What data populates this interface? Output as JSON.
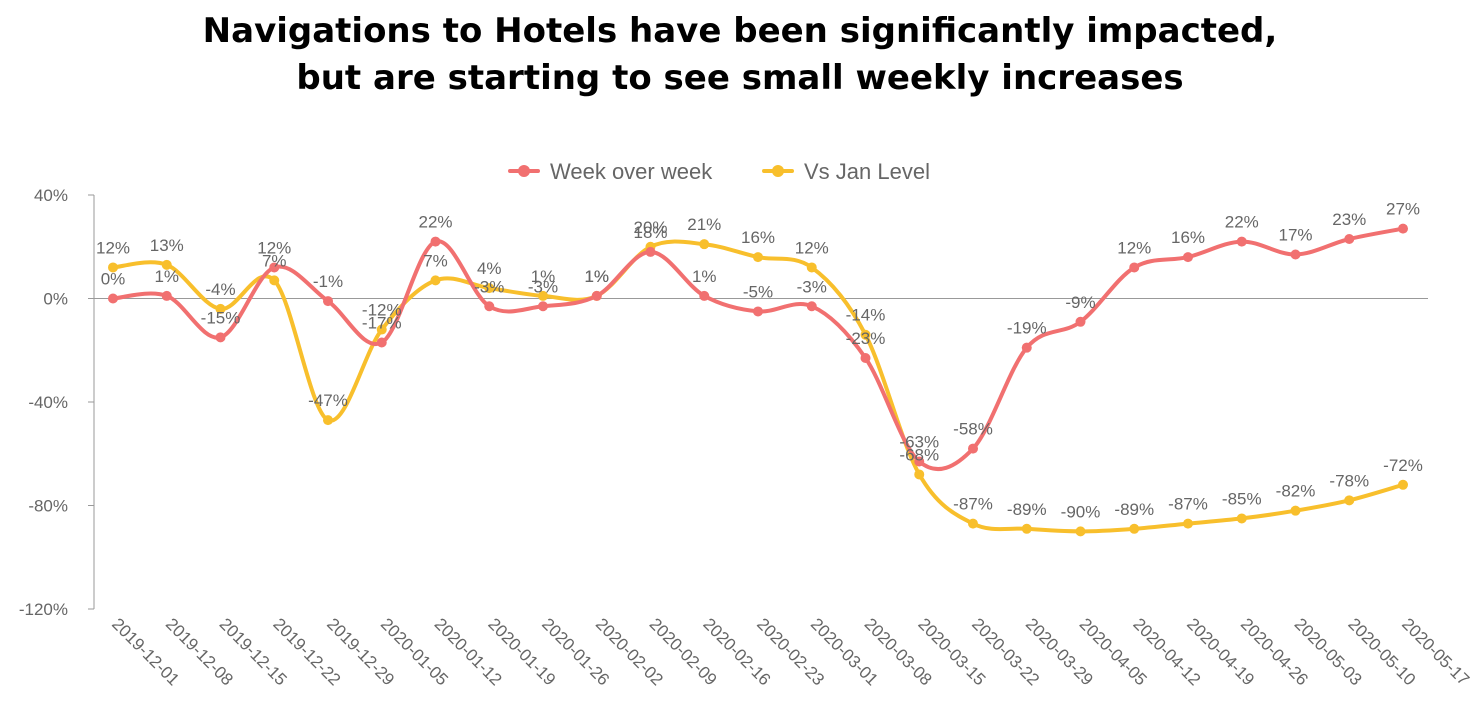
{
  "title": {
    "line1": "Navigations to Hotels have been significantly impacted,",
    "line2": "but are starting to see small weekly increases"
  },
  "chart_data": {
    "type": "line",
    "categories": [
      "2019-12-01",
      "2019-12-08",
      "2019-12-15",
      "2019-12-22",
      "2019-12-29",
      "2020-01-05",
      "2020-01-12",
      "2020-01-19",
      "2020-01-26",
      "2020-02-02",
      "2020-02-09",
      "2020-02-16",
      "2020-02-23",
      "2020-03-01",
      "2020-03-08",
      "2020-03-15",
      "2020-03-22",
      "2020-03-29",
      "2020-04-05",
      "2020-04-12",
      "2020-04-19",
      "2020-04-26",
      "2020-05-03",
      "2020-05-10",
      "2020-05-17"
    ],
    "ylim": [
      -120,
      40
    ],
    "yticks": [
      "40%",
      "0%",
      "-40%",
      "-80%",
      "-120%"
    ],
    "ytick_values": [
      40,
      0,
      -40,
      -80,
      -120
    ],
    "legend_position": "top",
    "series": [
      {
        "name": "Week over week",
        "color": "#f17070",
        "values": [
          0,
          1,
          -15,
          12,
          -1,
          -17,
          22,
          -3,
          -3,
          1,
          18,
          1,
          -5,
          -3,
          -23,
          -63,
          -58,
          -19,
          -9,
          12,
          16,
          22,
          17,
          23,
          27
        ],
        "labels": [
          "0%",
          "1%",
          "-15%",
          "12%",
          "-1%",
          "-17%",
          "22%",
          "-3%",
          "-3%",
          "1%",
          "18%",
          "1%",
          "-5%",
          "-3%",
          "-23%",
          "-63%",
          "-58%",
          "-19%",
          "-9%",
          "12%",
          "16%",
          "22%",
          "17%",
          "23%",
          "27%"
        ]
      },
      {
        "name": "Vs Jan Level",
        "color": "#f8bf2c",
        "values": [
          12,
          13,
          -4,
          7,
          -47,
          -12,
          7,
          4,
          1,
          1,
          20,
          21,
          16,
          12,
          -14,
          -68,
          -87,
          -89,
          -90,
          -89,
          -87,
          -85,
          -82,
          -78,
          -72
        ],
        "labels": [
          "12%",
          "13%",
          "-4%",
          "7%",
          "-47%",
          "-12%",
          "7%",
          "4%",
          "1%",
          "1%",
          "20%",
          "21%",
          "16%",
          "12%",
          "-14%",
          "-68%",
          "-87%",
          "-89%",
          "-90%",
          "-89%",
          "-87%",
          "-85%",
          "-82%",
          "-78%",
          "-72%"
        ]
      }
    ]
  }
}
